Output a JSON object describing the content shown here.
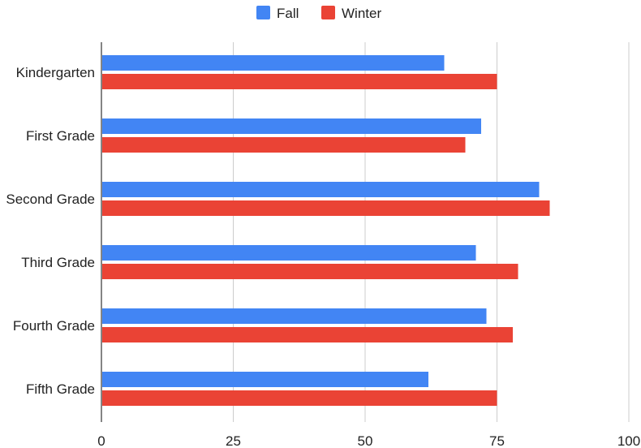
{
  "chart_data": {
    "type": "bar",
    "orientation": "horizontal",
    "categories": [
      "Kindergarten",
      "First Grade",
      "Second Grade",
      "Third Grade",
      "Fourth Grade",
      "Fifth Grade"
    ],
    "series": [
      {
        "name": "Fall",
        "color": "#4285F4",
        "values": [
          65,
          72,
          83,
          71,
          73,
          62
        ]
      },
      {
        "name": "Winter",
        "color": "#EA4335",
        "values": [
          75,
          69,
          85,
          79,
          78,
          75
        ]
      }
    ],
    "xlim": [
      0,
      100
    ],
    "xticks": [
      0,
      25,
      50,
      75,
      100
    ],
    "grid": true,
    "legend_position": "top-center",
    "title": "",
    "xlabel": "",
    "ylabel": ""
  }
}
